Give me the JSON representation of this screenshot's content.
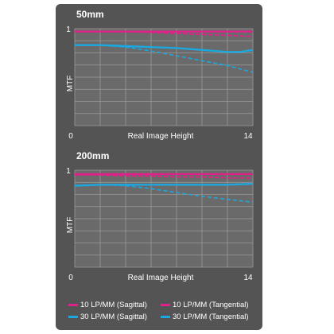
{
  "colors": {
    "panel": "#545454",
    "plot_bg": "#6a6a6a",
    "grid": "#9a9a9a",
    "magenta": "#e0218a",
    "cyan": "#1ba8e0",
    "text": "#ffffff"
  },
  "chart_data": [
    {
      "type": "line",
      "title": "50mm",
      "xlabel": "Real Image Height",
      "ylabel": "MTF",
      "xlim": [
        0,
        14
      ],
      "ylim": [
        0,
        1
      ],
      "x_ticks": [
        "0",
        "14"
      ],
      "y_ticks": [
        "1"
      ],
      "grid": true,
      "series": [
        {
          "name": "10 LP/MM (Sagittal)",
          "color": "#e0218a",
          "style": "solid",
          "x": [
            0,
            2,
            4,
            6,
            8,
            10,
            12,
            14
          ],
          "y": [
            0.97,
            0.97,
            0.97,
            0.97,
            0.97,
            0.97,
            0.97,
            0.97
          ]
        },
        {
          "name": "10 LP/MM (Tangential)",
          "color": "#e0218a",
          "style": "dashed",
          "x": [
            0,
            2,
            4,
            6,
            8,
            10,
            12,
            14
          ],
          "y": [
            0.97,
            0.97,
            0.97,
            0.96,
            0.95,
            0.94,
            0.93,
            0.92
          ]
        },
        {
          "name": "30 LP/MM (Sagittal)",
          "color": "#1ba8e0",
          "style": "solid",
          "x": [
            0,
            2,
            4,
            6,
            8,
            10,
            12,
            13,
            14
          ],
          "y": [
            0.83,
            0.83,
            0.82,
            0.81,
            0.8,
            0.78,
            0.76,
            0.76,
            0.78
          ]
        },
        {
          "name": "30 LP/MM (Tangential)",
          "color": "#1ba8e0",
          "style": "dashed",
          "x": [
            0,
            2,
            4,
            6,
            8,
            10,
            12,
            14
          ],
          "y": [
            0.83,
            0.83,
            0.81,
            0.77,
            0.72,
            0.67,
            0.62,
            0.55
          ]
        }
      ]
    },
    {
      "type": "line",
      "title": "200mm",
      "xlabel": "Real Image Height",
      "ylabel": "MTF",
      "xlim": [
        0,
        14
      ],
      "ylim": [
        0,
        1
      ],
      "x_ticks": [
        "0",
        "14"
      ],
      "y_ticks": [
        "1"
      ],
      "grid": true,
      "series": [
        {
          "name": "10 LP/MM (Sagittal)",
          "color": "#e0218a",
          "style": "solid",
          "x": [
            0,
            2,
            4,
            6,
            8,
            10,
            12,
            14
          ],
          "y": [
            0.96,
            0.96,
            0.96,
            0.96,
            0.96,
            0.96,
            0.96,
            0.96
          ]
        },
        {
          "name": "10 LP/MM (Tangential)",
          "color": "#e0218a",
          "style": "dashed",
          "x": [
            0,
            2,
            4,
            6,
            8,
            10,
            12,
            14
          ],
          "y": [
            0.95,
            0.95,
            0.94,
            0.94,
            0.93,
            0.93,
            0.92,
            0.92
          ]
        },
        {
          "name": "30 LP/MM (Sagittal)",
          "color": "#1ba8e0",
          "style": "solid",
          "x": [
            0,
            2,
            4,
            6,
            8,
            10,
            12,
            14
          ],
          "y": [
            0.84,
            0.85,
            0.85,
            0.85,
            0.85,
            0.85,
            0.85,
            0.86
          ]
        },
        {
          "name": "30 LP/MM (Tangential)",
          "color": "#1ba8e0",
          "style": "dashed",
          "x": [
            0,
            2,
            4,
            6,
            8,
            10,
            12,
            14
          ],
          "y": [
            0.84,
            0.85,
            0.84,
            0.81,
            0.77,
            0.73,
            0.7,
            0.67
          ]
        }
      ]
    }
  ],
  "legend": {
    "items": [
      {
        "label": "10 LP/MM (Sagittal)",
        "color": "#e0218a"
      },
      {
        "label": "10 LP/MM (Tangential)",
        "color": "#e0218a"
      },
      {
        "label": "30 LP/MM (Sagittal)",
        "color": "#1ba8e0"
      },
      {
        "label": "30 LP/MM (Tangential)",
        "color": "#1ba8e0"
      }
    ]
  }
}
